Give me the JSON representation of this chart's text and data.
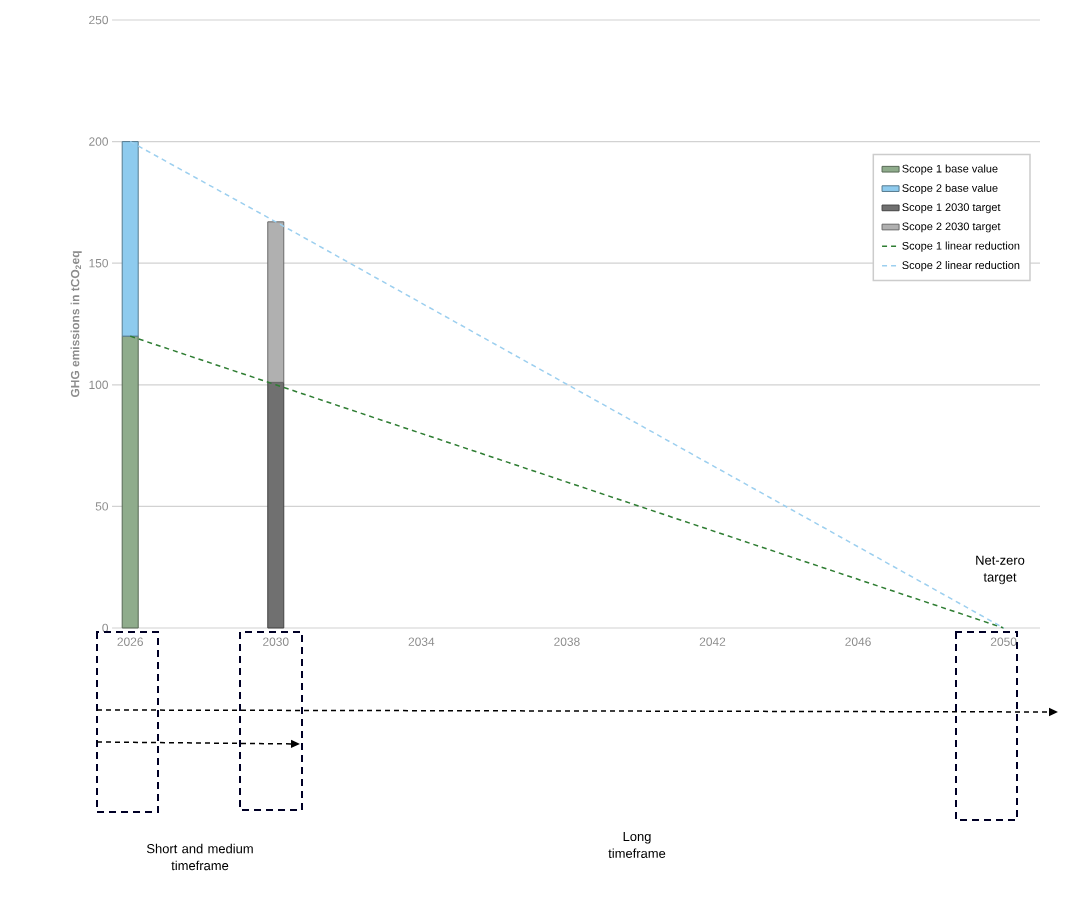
{
  "chart_data": {
    "type": "bar",
    "stacked": true,
    "ylabel": "GHG emissions in tCO$_{2}$eq",
    "xlim": [
      2025.5,
      2051
    ],
    "xticks": [
      2026,
      2030,
      2034,
      2038,
      2042,
      2046,
      2050
    ],
    "ylim": [
      0,
      250
    ],
    "yticks": [
      0,
      50,
      100,
      150,
      200,
      250
    ],
    "grid": "y",
    "legend": "right",
    "x": [
      2026,
      2030,
      2050
    ],
    "series": [
      {
        "name": "Scope 1 base value",
        "color": "#8fac8c",
        "values": [
          120,
          null,
          null
        ]
      },
      {
        "name": "Scope 2 base value",
        "color": "#8ecbee",
        "values": [
          80,
          null,
          null
        ]
      },
      {
        "name": "Scope 1 2030 target",
        "color": "#707070",
        "values": [
          null,
          101,
          null
        ]
      },
      {
        "name": "Scope 2 2030 target",
        "color": "#b0b0b0",
        "values": [
          null,
          66,
          null
        ]
      },
      {
        "name": "Scope 1 linear reduction",
        "type": "line",
        "line_style": "dashed",
        "color": "#2e7d32",
        "values": [
          120,
          100,
          0
        ]
      },
      {
        "name": "Scope 2 linear reduction",
        "type": "line",
        "line_style": "dashed",
        "color": "#9ccfef",
        "values": [
          200,
          167,
          0
        ]
      }
    ],
    "annotations": [
      "Net-zero target",
      "Short and medium timeframe",
      "Long timeframe"
    ]
  }
}
